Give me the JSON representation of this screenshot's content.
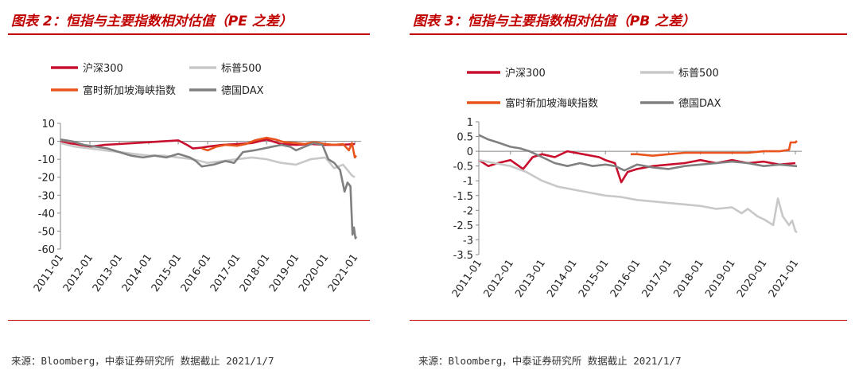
{
  "left": {
    "title": "图表 2：恒指与主要指数相对估值（PE 之差）",
    "source": "来源：Bloomberg，中泰证券研究所 数据截止 2021/1/7"
  },
  "right": {
    "title": "图表 3：恒指与主要指数相对估值（PB 之差）",
    "source": "来源：Bloomberg，中泰证券研究所 数据截止 2021/1/7"
  },
  "colors": {
    "accent": "#c00000",
    "csi300": "#c8102e",
    "sp500": "#c8c8c8",
    "sti": "#e8541c",
    "dax": "#808080"
  },
  "chart_data": [
    {
      "type": "line",
      "ylim": [
        -60,
        10
      ],
      "yticks": [
        "10",
        "0",
        "-10",
        "-20",
        "-30",
        "-40",
        "-50",
        "-60"
      ],
      "xticks": [
        "2011-01",
        "2012-01",
        "2013-01",
        "2014-01",
        "2015-01",
        "2016-01",
        "2017-01",
        "2018-01",
        "2019-01",
        "2020-01",
        "2021-01"
      ],
      "grid": false,
      "legend": "top",
      "series": [
        {
          "name": "沪深300",
          "color": "#c8102e",
          "points": [
            [
              2011.0,
              -0.5
            ],
            [
              2011.5,
              -1.5
            ],
            [
              2012.0,
              -3
            ],
            [
              2012.5,
              -2
            ],
            [
              2013.0,
              -1.5
            ],
            [
              2013.5,
              -1
            ],
            [
              2014.0,
              -0.5
            ],
            [
              2014.5,
              0
            ],
            [
              2015.0,
              0.5
            ],
            [
              2015.3,
              -2
            ],
            [
              2015.5,
              -4
            ],
            [
              2015.8,
              -3.5
            ],
            [
              2016.0,
              -3
            ],
            [
              2016.5,
              -2
            ],
            [
              2017.0,
              -1.5
            ],
            [
              2017.5,
              -1
            ],
            [
              2018.0,
              1
            ],
            [
              2018.5,
              -1.5
            ],
            [
              2019.0,
              -2
            ],
            [
              2019.5,
              -1.5
            ],
            [
              2020.0,
              -2
            ],
            [
              2020.5,
              -2
            ],
            [
              2021.0,
              -1.5
            ]
          ]
        },
        {
          "name": "标普500",
          "color": "#c8c8c8",
          "points": [
            [
              2011.0,
              -1
            ],
            [
              2011.5,
              -3
            ],
            [
              2012.0,
              -4
            ],
            [
              2012.5,
              -5
            ],
            [
              2013.0,
              -6
            ],
            [
              2013.5,
              -7
            ],
            [
              2014.0,
              -8
            ],
            [
              2014.5,
              -8
            ],
            [
              2015.0,
              -9
            ],
            [
              2015.5,
              -10
            ],
            [
              2016.0,
              -12
            ],
            [
              2016.5,
              -11
            ],
            [
              2017.0,
              -10
            ],
            [
              2017.5,
              -9
            ],
            [
              2018.0,
              -10
            ],
            [
              2018.5,
              -12
            ],
            [
              2019.0,
              -13
            ],
            [
              2019.5,
              -10
            ],
            [
              2020.0,
              -9
            ],
            [
              2020.3,
              -15
            ],
            [
              2020.6,
              -13
            ],
            [
              2020.9,
              -19
            ],
            [
              2021.0,
              -20
            ]
          ]
        },
        {
          "name": "富时新加坡海峡指数",
          "color": "#e8541c",
          "points": [
            [
              2015.8,
              -4
            ],
            [
              2016.0,
              -5
            ],
            [
              2016.3,
              -3
            ],
            [
              2016.6,
              -2
            ],
            [
              2017.0,
              -2.5
            ],
            [
              2017.3,
              -1.5
            ],
            [
              2017.6,
              0.5
            ],
            [
              2018.0,
              2
            ],
            [
              2018.3,
              1
            ],
            [
              2018.6,
              -0.5
            ],
            [
              2019.0,
              -1
            ],
            [
              2019.3,
              -1.5
            ],
            [
              2019.6,
              -0.5
            ],
            [
              2020.0,
              -1.5
            ],
            [
              2020.3,
              -2
            ],
            [
              2020.6,
              -1.5
            ],
            [
              2020.8,
              -5
            ],
            [
              2020.9,
              -1
            ],
            [
              2021.0,
              -9
            ],
            [
              2021.05,
              -8
            ]
          ]
        },
        {
          "name": "德国DAX",
          "color": "#808080",
          "points": [
            [
              2011.0,
              1
            ],
            [
              2011.4,
              0
            ],
            [
              2011.8,
              -2
            ],
            [
              2012.2,
              -3
            ],
            [
              2012.6,
              -4
            ],
            [
              2013.0,
              -6
            ],
            [
              2013.4,
              -8
            ],
            [
              2013.8,
              -9
            ],
            [
              2014.2,
              -8
            ],
            [
              2014.6,
              -9
            ],
            [
              2015.0,
              -7
            ],
            [
              2015.4,
              -9
            ],
            [
              2015.6,
              -11
            ],
            [
              2015.8,
              -14
            ],
            [
              2016.2,
              -13
            ],
            [
              2016.6,
              -11
            ],
            [
              2016.9,
              -12
            ],
            [
              2017.2,
              -6
            ],
            [
              2017.6,
              -5
            ],
            [
              2017.9,
              -4
            ],
            [
              2018.2,
              -3
            ],
            [
              2018.5,
              -2
            ],
            [
              2018.8,
              -3
            ],
            [
              2019.0,
              -5
            ],
            [
              2019.3,
              -3
            ],
            [
              2019.6,
              -1
            ],
            [
              2019.9,
              -2
            ],
            [
              2020.1,
              -10
            ],
            [
              2020.3,
              -12
            ],
            [
              2020.5,
              -16
            ],
            [
              2020.65,
              -28
            ],
            [
              2020.75,
              -23
            ],
            [
              2020.85,
              -25
            ],
            [
              2020.92,
              -52
            ],
            [
              2020.97,
              -48
            ],
            [
              2021.02,
              -54
            ],
            [
              2021.05,
              -53
            ]
          ]
        }
      ]
    },
    {
      "type": "line",
      "ylim": [
        -3.5,
        1
      ],
      "yticks": [
        "1",
        "0.5",
        "0",
        "-0.5",
        "-1",
        "-1.5",
        "-2",
        "-2.5",
        "-3",
        "-3.5"
      ],
      "xticks": [
        "2011-01",
        "2012-01",
        "2013-01",
        "2014-01",
        "2015-01",
        "2016-01",
        "2017-01",
        "2018-01",
        "2019-01",
        "2020-01",
        "2021-01"
      ],
      "grid": false,
      "legend": "top",
      "series": [
        {
          "name": "沪深300",
          "color": "#c8102e",
          "points": [
            [
              2011.0,
              -0.3
            ],
            [
              2011.3,
              -0.5
            ],
            [
              2011.6,
              -0.4
            ],
            [
              2012.0,
              -0.3
            ],
            [
              2012.4,
              -0.6
            ],
            [
              2012.7,
              -0.2
            ],
            [
              2013.0,
              -0.1
            ],
            [
              2013.4,
              -0.2
            ],
            [
              2013.8,
              0
            ],
            [
              2014.3,
              -0.1
            ],
            [
              2014.8,
              -0.2
            ],
            [
              2015.0,
              -0.3
            ],
            [
              2015.3,
              -0.4
            ],
            [
              2015.5,
              -1.05
            ],
            [
              2015.7,
              -0.7
            ],
            [
              2016.0,
              -0.6
            ],
            [
              2016.5,
              -0.5
            ],
            [
              2017.0,
              -0.45
            ],
            [
              2017.5,
              -0.4
            ],
            [
              2018.0,
              -0.3
            ],
            [
              2018.5,
              -0.4
            ],
            [
              2019.0,
              -0.3
            ],
            [
              2019.5,
              -0.4
            ],
            [
              2020.0,
              -0.35
            ],
            [
              2020.5,
              -0.45
            ],
            [
              2021.0,
              -0.4
            ]
          ]
        },
        {
          "name": "标普500",
          "color": "#c8c8c8",
          "points": [
            [
              2011.0,
              -0.3
            ],
            [
              2011.5,
              -0.4
            ],
            [
              2012.0,
              -0.5
            ],
            [
              2012.5,
              -0.7
            ],
            [
              2013.0,
              -1
            ],
            [
              2013.5,
              -1.2
            ],
            [
              2014.0,
              -1.3
            ],
            [
              2014.5,
              -1.4
            ],
            [
              2015.0,
              -1.5
            ],
            [
              2015.5,
              -1.55
            ],
            [
              2016.0,
              -1.65
            ],
            [
              2016.5,
              -1.7
            ],
            [
              2017.0,
              -1.75
            ],
            [
              2017.5,
              -1.8
            ],
            [
              2018.0,
              -1.85
            ],
            [
              2018.5,
              -1.95
            ],
            [
              2019.0,
              -1.9
            ],
            [
              2019.3,
              -2.1
            ],
            [
              2019.5,
              -1.95
            ],
            [
              2019.8,
              -2.2
            ],
            [
              2020.0,
              -2.3
            ],
            [
              2020.3,
              -2.5
            ],
            [
              2020.45,
              -1.6
            ],
            [
              2020.6,
              -2.2
            ],
            [
              2020.8,
              -2.5
            ],
            [
              2020.9,
              -2.35
            ],
            [
              2021.0,
              -2.7
            ],
            [
              2021.05,
              -2.75
            ]
          ]
        },
        {
          "name": "富时新加坡海峡指数",
          "color": "#e8541c",
          "points": [
            [
              2015.8,
              -0.1
            ],
            [
              2016.0,
              -0.1
            ],
            [
              2016.5,
              -0.15
            ],
            [
              2017.0,
              -0.1
            ],
            [
              2017.5,
              -0.05
            ],
            [
              2018.0,
              -0.05
            ],
            [
              2018.5,
              -0.05
            ],
            [
              2019.0,
              -0.05
            ],
            [
              2019.5,
              -0.05
            ],
            [
              2020.0,
              0
            ],
            [
              2020.5,
              0
            ],
            [
              2020.8,
              0.05
            ],
            [
              2020.85,
              0.3
            ],
            [
              2021.0,
              0.3
            ],
            [
              2021.05,
              0.35
            ]
          ]
        },
        {
          "name": "德国DAX",
          "color": "#808080",
          "points": [
            [
              2011.0,
              0.55
            ],
            [
              2011.3,
              0.4
            ],
            [
              2011.6,
              0.3
            ],
            [
              2012.0,
              0.15
            ],
            [
              2012.3,
              0.1
            ],
            [
              2012.6,
              0
            ],
            [
              2013.0,
              -0.2
            ],
            [
              2013.4,
              -0.4
            ],
            [
              2013.8,
              -0.5
            ],
            [
              2014.2,
              -0.4
            ],
            [
              2014.6,
              -0.5
            ],
            [
              2015.0,
              -0.45
            ],
            [
              2015.3,
              -0.5
            ],
            [
              2015.6,
              -0.65
            ],
            [
              2016.0,
              -0.45
            ],
            [
              2016.5,
              -0.55
            ],
            [
              2017.0,
              -0.6
            ],
            [
              2017.5,
              -0.5
            ],
            [
              2018.0,
              -0.45
            ],
            [
              2018.5,
              -0.4
            ],
            [
              2019.0,
              -0.35
            ],
            [
              2019.5,
              -0.4
            ],
            [
              2020.0,
              -0.5
            ],
            [
              2020.5,
              -0.45
            ],
            [
              2021.0,
              -0.5
            ],
            [
              2021.05,
              -0.5
            ]
          ]
        }
      ]
    }
  ]
}
